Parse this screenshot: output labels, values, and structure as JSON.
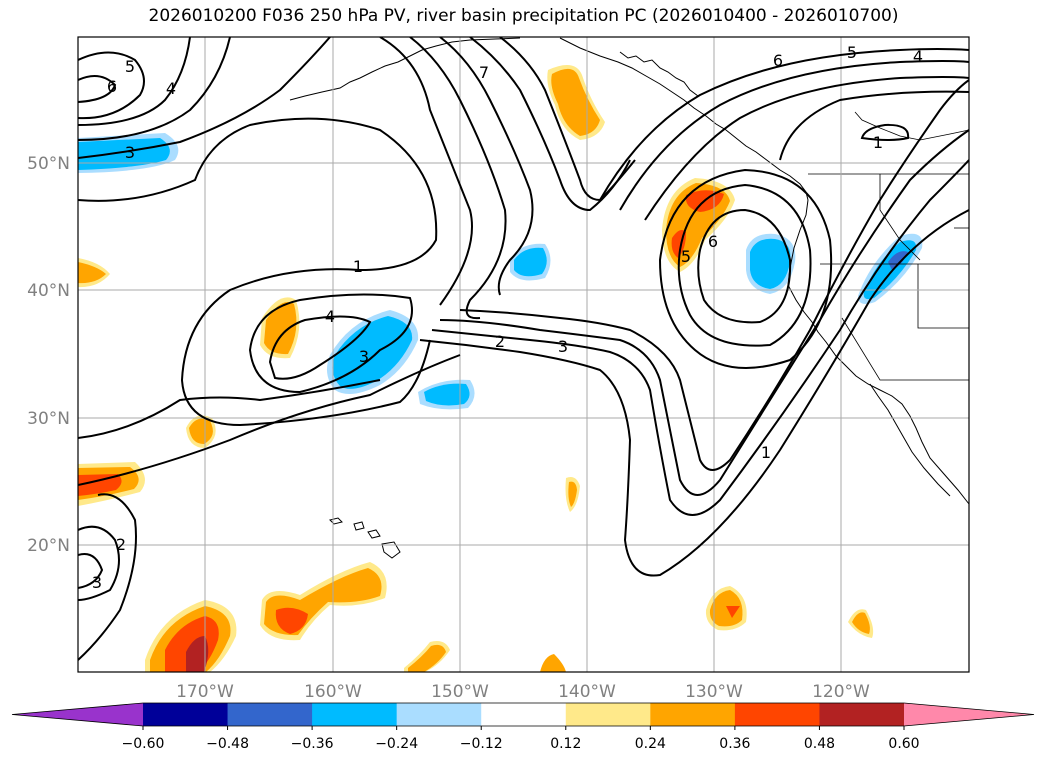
{
  "title": "2026010200 F036 250 hPa PV, river basin precipitation PC (2026010400 - 2026010700)",
  "lat_labels": [
    "50°N",
    "40°N",
    "30°N",
    "20°N"
  ],
  "lon_labels": [
    "170°W",
    "160°W",
    "150°W",
    "140°W",
    "130°W",
    "120°W"
  ],
  "colorbar": {
    "tick_labels": [
      "−0.60",
      "−0.48",
      "−0.36",
      "−0.24",
      "−0.12",
      "0.12",
      "0.24",
      "0.36",
      "0.48",
      "0.60"
    ],
    "colors": [
      "#9933cc",
      "#000099",
      "#3366cc",
      "#00bbff",
      "#aaddff",
      "#ffffff",
      "#ffe98a",
      "#ffa500",
      "#ff4500",
      "#b22222",
      "#ff88aa"
    ]
  },
  "contour_labels": [
    "5",
    "6",
    "4",
    "3",
    "7",
    "6",
    "5",
    "4",
    "1",
    "1",
    "4",
    "3",
    "2",
    "3",
    "5",
    "6",
    "1",
    "2",
    "3"
  ],
  "colors": {
    "orange": "#ffa500",
    "light_yellow": "#ffe98a",
    "red_orange": "#ff4500",
    "dark_red": "#b22222",
    "cyan": "#00bbff",
    "light_blue": "#aaddff",
    "royal_blue": "#3366cc",
    "grid": "#aaaaaa"
  }
}
